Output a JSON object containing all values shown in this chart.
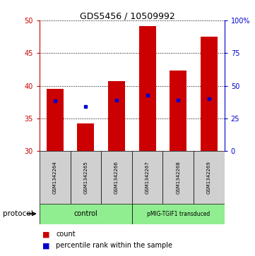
{
  "title": "GDS5456 / 10509992",
  "samples": [
    "GSM1342264",
    "GSM1342265",
    "GSM1342266",
    "GSM1342267",
    "GSM1342268",
    "GSM1342269"
  ],
  "bar_bottom": 30,
  "counts": [
    39.5,
    34.2,
    40.7,
    49.1,
    42.3,
    47.5
  ],
  "percentile_values": [
    37.7,
    36.8,
    37.8,
    38.5,
    37.8,
    38.0
  ],
  "ylim": [
    30,
    50
  ],
  "yticks_left": [
    30,
    35,
    40,
    45,
    50
  ],
  "yticks_right_vals": [
    0,
    25,
    50,
    75,
    100
  ],
  "yticks_right_labels": [
    "0",
    "25",
    "50",
    "75",
    "100%"
  ],
  "bar_color": "#cc0000",
  "dot_color": "#0000cc",
  "bar_width": 0.55,
  "control_label": "control",
  "transduced_label": "pMIG-TGIF1 transduced",
  "protocol_label": "protocol",
  "legend_count": "count",
  "legend_percentile": "percentile rank within the sample",
  "group_box_color": "#90EE90",
  "sample_box_color": "#d0d0d0",
  "left_axis_color": "#cc0000",
  "right_axis_color": "#0000cc",
  "title_fontsize": 9,
  "tick_fontsize": 7,
  "sample_fontsize": 5,
  "legend_fontsize": 7
}
